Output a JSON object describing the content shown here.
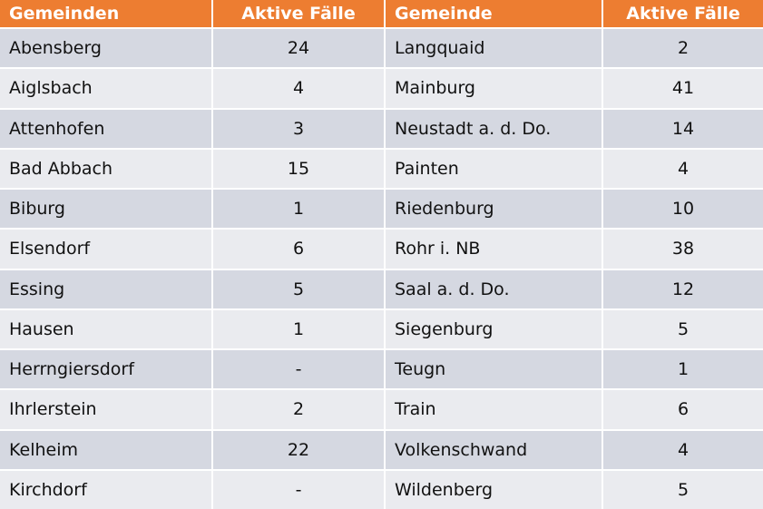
{
  "table": {
    "header": [
      "Gemeinden",
      "Aktive Fälle",
      "Gemeinde",
      "Aktive Fälle"
    ],
    "rows": [
      [
        "Abensberg",
        24,
        "Langquaid",
        2
      ],
      [
        "Aiglsbach",
        4,
        "Mainburg",
        41
      ],
      [
        "Attenhofen",
        3,
        "Neustadt a. d. Do.",
        14
      ],
      [
        "Bad Abbach",
        15,
        "Painten",
        4
      ],
      [
        "Biburg",
        1,
        "Riedenburg",
        10
      ],
      [
        "Elsendorf",
        6,
        "Rohr i. NB",
        38
      ],
      [
        "Essing",
        5,
        "Saal a. d. Do.",
        12
      ],
      [
        "Hausen",
        1,
        "Siegenburg",
        5
      ],
      [
        "Herrngiersdorf",
        "-",
        "Teugn",
        1
      ],
      [
        "Ihrlerstein",
        2,
        "Train",
        6
      ],
      [
        "Kelheim",
        22,
        "Volkenschwand",
        4
      ],
      [
        "Kirchdorf",
        "-",
        "Wildenberg",
        5
      ]
    ]
  }
}
